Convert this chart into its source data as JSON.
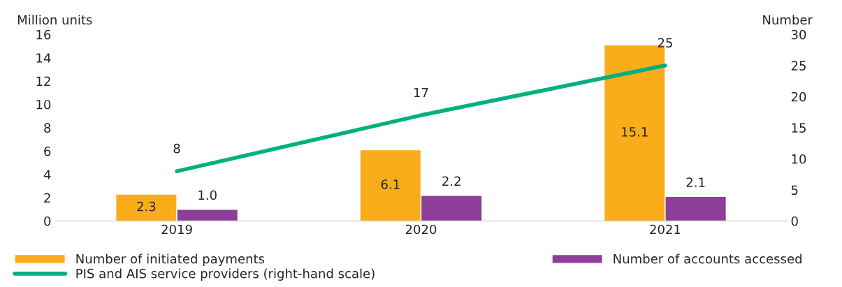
{
  "chart_data": {
    "type": "bar",
    "categories": [
      "2019",
      "2020",
      "2021"
    ],
    "ylabel": "Million units",
    "y2label": "Number",
    "ylim": [
      0,
      16
    ],
    "yticks": [
      0,
      2,
      4,
      6,
      8,
      10,
      12,
      14,
      16
    ],
    "y2lim": [
      0,
      30
    ],
    "y2ticks": [
      0,
      5,
      10,
      15,
      20,
      25,
      30
    ],
    "series": [
      {
        "name": "Number of initiated payments",
        "color": "#f9ad1a",
        "values": [
          2.3,
          6.1,
          15.1
        ],
        "value_labels": [
          "2.3",
          "6.1",
          "15.1"
        ]
      },
      {
        "name": "Number of accounts accessed",
        "color": "#8b3f98",
        "values": [
          1.0,
          2.2,
          2.1
        ],
        "value_labels": [
          "1.0",
          "2.2",
          "2.1"
        ]
      },
      {
        "name": "PIS and AIS service providers (right-hand scale)",
        "type": "line",
        "axis": "y2",
        "color": "#00b07f",
        "values": [
          8,
          17,
          25
        ],
        "value_labels": [
          "8",
          "17",
          "25"
        ]
      }
    ],
    "grid": false,
    "legend": "bottom",
    "marker": "none",
    "line_style": "solid"
  }
}
